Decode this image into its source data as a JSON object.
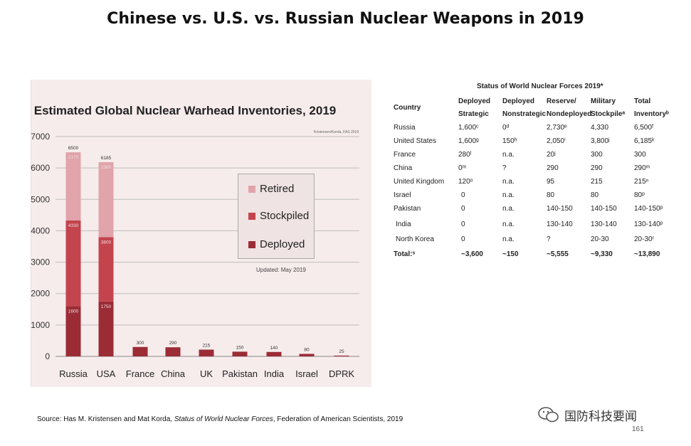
{
  "slide": {
    "title": "Chinese vs. U.S. vs. Russian Nuclear Weapons in 2019",
    "source_prefix": "Source: Has M. Kristensen and Mat Korda, ",
    "source_italic": "Status of World Nuclear Forces",
    "source_suffix": ", Federation of American Scientists, 2019",
    "brand": "国防科技要闻",
    "page_number": "161"
  },
  "chart_data": {
    "type": "bar",
    "title": "Estimated Global Nuclear Warhead Inventories, 2019",
    "credit": "Kristensen/Korda, FAS 2019",
    "updated": "Updated: May 2019",
    "categories": [
      "Russia",
      "USA",
      "France",
      "China",
      "UK",
      "Pakistan",
      "India",
      "Israel",
      "DPRK"
    ],
    "ylim": [
      0,
      7000
    ],
    "yticks": [
      0,
      1000,
      2000,
      3000,
      4000,
      5000,
      6000,
      7000
    ],
    "grid": true,
    "legend_position": "right",
    "series": [
      {
        "name": "Deployed",
        "color": "#9b2c36",
        "values": [
          1600,
          1750,
          300,
          290,
          215,
          150,
          140,
          80,
          25
        ],
        "labels": [
          "1600",
          "1750",
          "300",
          "290",
          "215",
          "150",
          "140",
          "80",
          "25"
        ]
      },
      {
        "name": "Stockpiled",
        "color": "#c4444d",
        "values": [
          2730,
          2050,
          0,
          0,
          0,
          0,
          0,
          0,
          0
        ],
        "labels": [
          "4330",
          "3800",
          "",
          "",
          "",
          "",
          "",
          "",
          ""
        ]
      },
      {
        "name": "Retired",
        "color": "#e0a4aa",
        "values": [
          2170,
          2385,
          0,
          0,
          0,
          0,
          0,
          0,
          0
        ],
        "labels": [
          "2170",
          "2385",
          "",
          "",
          "",
          "",
          "",
          "",
          ""
        ]
      }
    ],
    "totals": [
      "6500",
      "6185",
      "",
      "",
      "",
      "",
      "",
      "",
      ""
    ],
    "legend": [
      "Retired",
      "Stockpiled",
      "Deployed"
    ]
  },
  "table": {
    "caption": "Status of World Nuclear Forces 2019*",
    "headers": [
      [
        "Country"
      ],
      [
        "Deployed",
        "Strategic"
      ],
      [
        "Deployed",
        "Nonstrategic"
      ],
      [
        "Reserve/",
        "Nondeployed"
      ],
      [
        "Military",
        "Stockpileᵃ"
      ],
      [
        "Total",
        "Inventoryᵇ"
      ]
    ],
    "rows": [
      [
        "Russia",
        "1,600ᶜ",
        "0ᵈ",
        "2,730ᵉ",
        "4,330",
        "6,500ᶠ"
      ],
      [
        "United States",
        "1,600ᵍ",
        "150ʰ",
        "2,050ⁱ",
        "3,800ʲ",
        "6,185ᵏ"
      ],
      [
        "France",
        "280ˡ",
        "n.a.",
        "20ʲ",
        "300",
        "300"
      ],
      [
        "China",
        "0ᵐ",
        "?",
        "290",
        "290",
        "290ᵐ"
      ],
      [
        "United Kingdom",
        "120ᵒ",
        "n.a.",
        "95",
        "215",
        "215ⁿ"
      ],
      [
        "Israel",
        "0",
        "n.a.",
        "80",
        "80",
        "80ᵖ"
      ],
      [
        "Pakistan",
        "0",
        "n.a.",
        "140-150",
        "140-150",
        "140-150ᵖ"
      ],
      [
        "India",
        "0",
        "n.a.",
        "130-140",
        "130-140",
        "130-140ᵖ"
      ],
      [
        "North Korea",
        "0",
        "n.a.",
        "?",
        "20-30",
        "20-30ʳ"
      ],
      [
        "Total:ˢ",
        "~3,600",
        "~150",
        "~5,555",
        "~9,330",
        "~13,890"
      ]
    ]
  }
}
